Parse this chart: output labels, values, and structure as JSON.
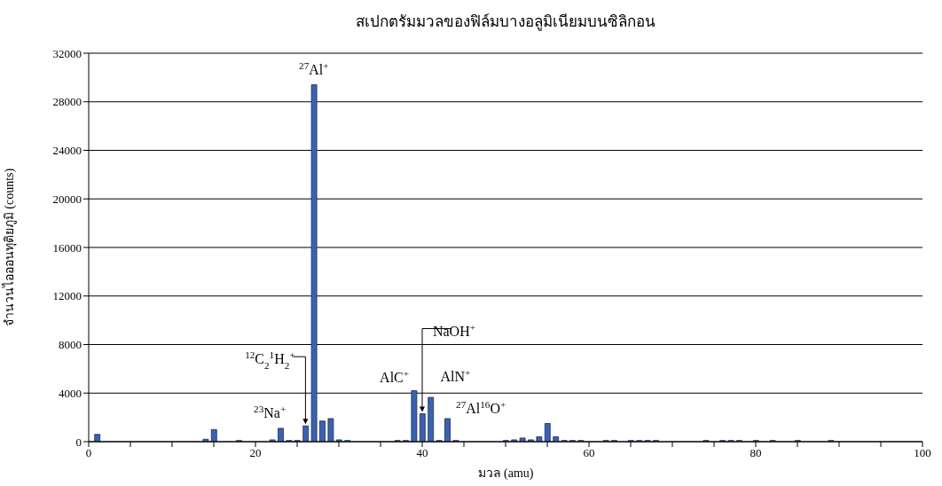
{
  "chart_data": {
    "type": "bar",
    "title": "สเปกตรัมมวลของฟิล์มบางอลูมิเนียมบนซิลิกอน",
    "xlabel": "มวล (amu)",
    "ylabel": "จำนวนไอออนทุติยภูมิ (counts)",
    "x": [
      1,
      14,
      15,
      18,
      22,
      23,
      24,
      25,
      26,
      27,
      28,
      29,
      30,
      31,
      37,
      38,
      39,
      40,
      41,
      42,
      43,
      44,
      50,
      51,
      52,
      53,
      54,
      55,
      56,
      57,
      58,
      59,
      62,
      63,
      65,
      66,
      67,
      68,
      74,
      76,
      77,
      78,
      80,
      82,
      85,
      89
    ],
    "values": [
      600,
      200,
      1000,
      100,
      150,
      1100,
      100,
      100,
      1300,
      29400,
      1700,
      1900,
      150,
      100,
      100,
      100,
      4200,
      2300,
      3650,
      100,
      1900,
      100,
      100,
      150,
      300,
      150,
      400,
      1500,
      400,
      100,
      100,
      100,
      100,
      100,
      100,
      100,
      100,
      100,
      100,
      100,
      100,
      100,
      100,
      100,
      100,
      100
    ],
    "color": "#3b62b0",
    "xlim": [
      0,
      100
    ],
    "xticks": [
      0,
      {
        "value": 5,
        "label": null
      },
      {
        "value": 10,
        "label": null
      },
      {
        "value": 15,
        "label": null
      },
      20,
      {
        "value": 25,
        "label": null
      },
      {
        "value": 30,
        "label": null
      },
      {
        "value": 35,
        "label": null
      },
      40,
      {
        "value": 45,
        "label": null
      },
      {
        "value": 50,
        "label": null
      },
      {
        "value": 55,
        "label": null
      },
      60,
      {
        "value": 65,
        "label": null
      },
      {
        "value": 70,
        "label": null
      },
      {
        "value": 75,
        "label": null
      },
      80,
      {
        "value": 85,
        "label": null
      },
      {
        "value": 90,
        "label": null
      },
      {
        "value": 95,
        "label": null
      },
      100
    ],
    "ylim": [
      0,
      32000
    ],
    "yticks": [
      0,
      4000,
      8000,
      12000,
      16000,
      20000,
      24000,
      28000,
      32000
    ],
    "grid": "y",
    "annotations": [
      {
        "text": "$^{27}$Al$^{+}$",
        "x": 27,
        "y": 29400
      },
      {
        "text": "$^{12}$C$_{2}$$^{1}$H$_{2}$$^{+}$",
        "x": 26,
        "y": 1300
      },
      {
        "text": "$^{23}$Na$^{+}$",
        "x": 23,
        "y": 1100
      },
      {
        "text": "AlC$^{+}$",
        "x": 39,
        "y": 4200
      },
      {
        "text": "NaOH$^{+}$",
        "x": 40,
        "y": 2300
      },
      {
        "text": "AlN$^{+}$",
        "x": 41,
        "y": 3650
      },
      {
        "text": "$^{27}$Al$^{16}$O$^{+}$",
        "x": 43,
        "y": 1900
      }
    ]
  }
}
